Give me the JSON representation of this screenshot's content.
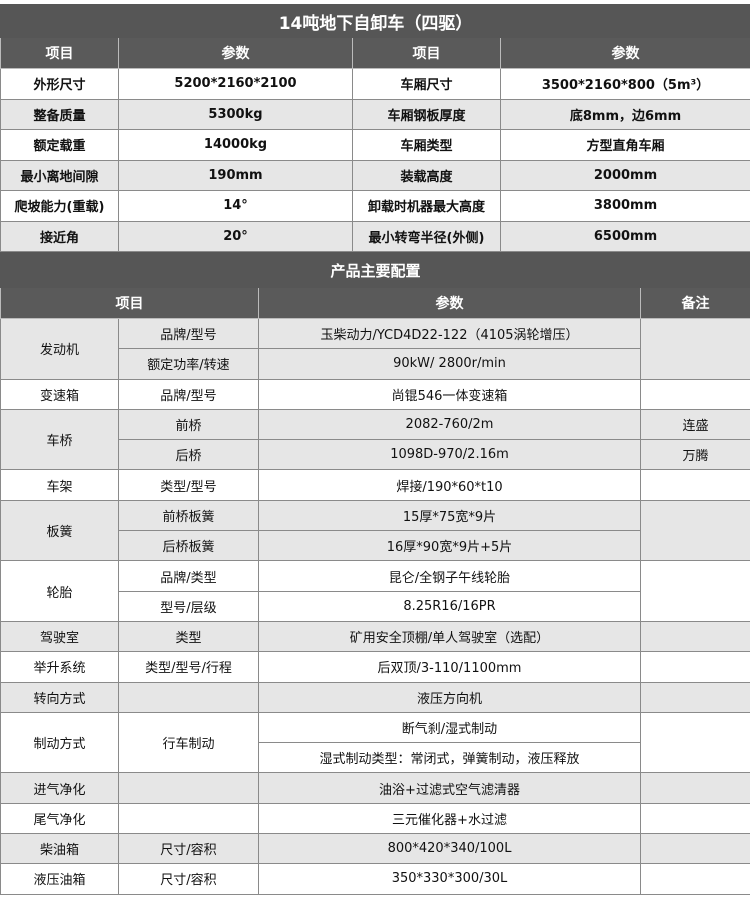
{
  "title": "14吨地下自卸车（四驱）",
  "spec_headers": [
    "项目",
    "参数",
    "项目",
    "参数"
  ],
  "specs": [
    [
      "外形尺寸",
      "5200*2160*2100",
      "车厢尺寸",
      "3500*2160*800（5m³）"
    ],
    [
      "整备质量",
      "5300kg",
      "车厢钢板厚度",
      "底8mm，边6mm"
    ],
    [
      "额定载重",
      "14000kg",
      "车厢类型",
      "方型直角车厢"
    ],
    [
      "最小离地间隙",
      "190mm",
      "装载高度",
      "2000mm"
    ],
    [
      "爬坡能力(重载)",
      "14°",
      "卸载时机器最大高度",
      "3800mm"
    ],
    [
      "接近角",
      "20°",
      "最小转弯半径(外侧)",
      "6500mm"
    ]
  ],
  "config_title": "产品主要配置",
  "config_headers": [
    "项目",
    "参数",
    "备注"
  ],
  "config": {
    "engine": {
      "name": "发动机",
      "rows": [
        [
          "品牌/型号",
          "玉柴动力/YCD4D22-122（4105涡轮增压）"
        ],
        [
          "额定功率/转速",
          "90kW/ 2800r/min"
        ]
      ]
    },
    "gearbox": {
      "name": "变速箱",
      "sub": "品牌/型号",
      "value": "尚锟546一体变速箱"
    },
    "axle": {
      "name": "车桥",
      "rows": [
        [
          "前桥",
          "2082-760/2m",
          "连盛"
        ],
        [
          "后桥",
          "1098D-970/2.16m",
          "万腾"
        ]
      ]
    },
    "frame": {
      "name": "车架",
      "sub": "类型/型号",
      "value": "焊接/190*60*t10"
    },
    "spring": {
      "name": "板簧",
      "rows": [
        [
          "前桥板簧",
          "15厚*75宽*9片"
        ],
        [
          "后桥板簧",
          "16厚*90宽*9片+5片"
        ]
      ]
    },
    "tire": {
      "name": "轮胎",
      "rows": [
        [
          "品牌/类型",
          "昆仑/全钢子午线轮胎"
        ],
        [
          "型号/层级",
          "8.25R16/16PR"
        ]
      ]
    },
    "cab": {
      "name": "驾驶室",
      "sub": "类型",
      "value": "矿用安全顶棚/单人驾驶室（选配）"
    },
    "lift": {
      "name": "举升系统",
      "sub": "类型/型号/行程",
      "value": "后双顶/3-110/1100mm"
    },
    "steering": {
      "name": "转向方式",
      "value": "液压方向机"
    },
    "brake": {
      "name": "制动方式",
      "sub": "行车制动",
      "rows": [
        "断气刹/湿式制动",
        "湿式制动类型：常闭式，弹簧制动，液压释放"
      ]
    },
    "intake": {
      "name": "进气净化",
      "value": "油浴+过滤式空气滤清器"
    },
    "exhaust": {
      "name": "尾气净化",
      "value": "三元催化器+水过滤"
    },
    "diesel": {
      "name": "柴油箱",
      "sub": "尺寸/容积",
      "value": "800*420*340/100L"
    },
    "hydraulic": {
      "name": "液压油箱",
      "sub": "尺寸/容积",
      "value": "350*330*300/30L"
    }
  }
}
